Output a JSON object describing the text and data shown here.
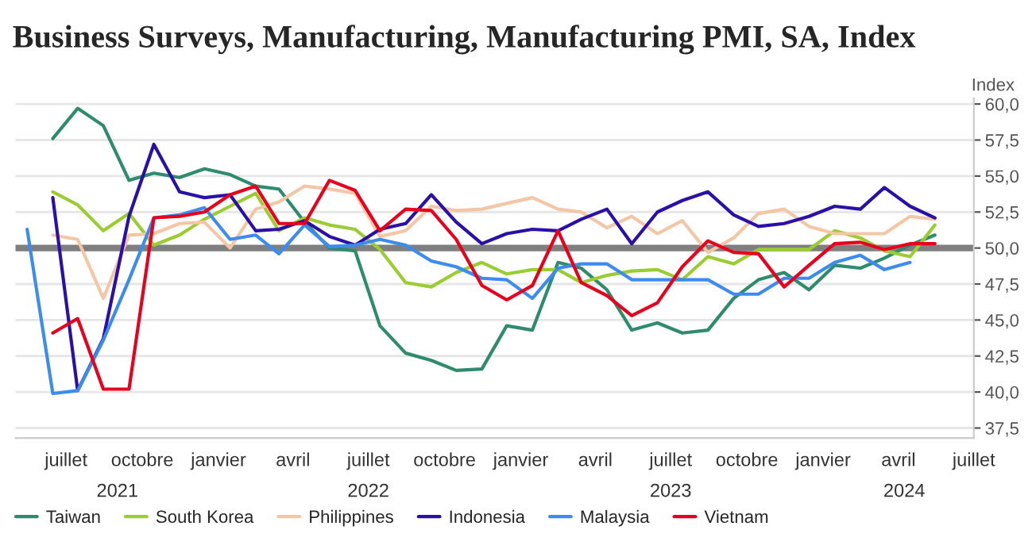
{
  "chart_data": {
    "type": "line",
    "title": "Business Surveys, Manufacturing, Manufacturing PMI, SA, Index",
    "ylabel": "Index",
    "x": [
      "2021-05-15",
      "2021-06-15",
      "2021-07-15",
      "2021-08-15",
      "2021-09-15",
      "2021-10-15",
      "2021-11-15",
      "2021-12-15",
      "2022-01-15",
      "2022-02-15",
      "2022-03-15",
      "2022-04-15",
      "2022-05-15",
      "2022-06-15",
      "2022-07-15",
      "2022-08-15",
      "2022-09-15",
      "2022-10-15",
      "2022-11-15",
      "2022-12-15",
      "2023-01-15",
      "2023-02-15",
      "2023-03-15",
      "2023-04-15",
      "2023-05-15",
      "2023-06-15",
      "2023-07-15",
      "2023-08-15",
      "2023-09-15",
      "2023-10-15",
      "2023-11-15",
      "2023-12-15",
      "2024-01-15",
      "2024-02-15",
      "2024-03-15",
      "2024-04-15",
      "2024-05-15"
    ],
    "series": [
      {
        "name": "Taiwan",
        "color": "#2e8b6e",
        "values": [
          null,
          57.6,
          59.7,
          58.5,
          54.7,
          55.2,
          54.9,
          55.5,
          55.1,
          54.3,
          54.1,
          51.8,
          50.0,
          49.8,
          44.6,
          42.7,
          42.2,
          41.5,
          41.6,
          44.6,
          44.3,
          49.0,
          48.6,
          47.1,
          44.3,
          44.8,
          44.1,
          44.3,
          46.5,
          47.8,
          48.3,
          47.1,
          48.8,
          48.6,
          49.3,
          50.2,
          50.9
        ]
      },
      {
        "name": "South Korea",
        "color": "#9acd32",
        "values": [
          null,
          53.9,
          53.0,
          51.2,
          52.4,
          50.2,
          50.9,
          52.0,
          52.9,
          53.8,
          51.2,
          52.1,
          51.6,
          51.3,
          49.9,
          47.6,
          47.3,
          48.3,
          49.0,
          48.2,
          48.5,
          48.5,
          47.6,
          48.1,
          48.4,
          48.5,
          47.8,
          49.4,
          48.9,
          49.9,
          49.9,
          49.9,
          51.2,
          50.7,
          49.8,
          49.4,
          51.6
        ]
      },
      {
        "name": "Philippines",
        "color": "#f5c6a5",
        "values": [
          null,
          50.9,
          50.6,
          46.5,
          50.9,
          51.0,
          51.7,
          51.8,
          50.0,
          52.7,
          53.2,
          54.3,
          54.1,
          53.8,
          50.8,
          51.2,
          52.9,
          52.6,
          52.7,
          53.1,
          53.5,
          52.7,
          52.5,
          51.4,
          52.2,
          51.0,
          51.9,
          49.7,
          50.7,
          52.4,
          52.7,
          51.5,
          51.0,
          51.0,
          51.0,
          52.2,
          52.0
        ]
      },
      {
        "name": "Indonesia",
        "color": "#2a0fa8",
        "values": [
          null,
          53.5,
          40.1,
          43.7,
          52.2,
          57.2,
          53.9,
          53.5,
          53.7,
          51.2,
          51.3,
          51.9,
          50.8,
          50.2,
          51.3,
          51.7,
          53.7,
          51.8,
          50.3,
          51.0,
          51.3,
          51.2,
          52.0,
          52.7,
          50.3,
          52.5,
          53.3,
          53.9,
          52.3,
          51.5,
          51.7,
          52.2,
          52.9,
          52.7,
          54.2,
          52.9,
          52.1
        ]
      },
      {
        "name": "Malaysia",
        "color": "#3c8cf0",
        "values": [
          51.3,
          39.9,
          40.1,
          43.6,
          47.8,
          52.1,
          52.3,
          52.8,
          50.6,
          50.9,
          49.6,
          51.6,
          50.1,
          50.2,
          50.6,
          50.2,
          49.1,
          48.7,
          47.9,
          47.8,
          46.5,
          48.6,
          48.9,
          48.9,
          47.8,
          47.8,
          47.8,
          47.8,
          46.8,
          46.8,
          47.9,
          47.9,
          49.0,
          49.5,
          48.5,
          49.0,
          null
        ]
      },
      {
        "name": "Vietnam",
        "color": "#e8001c",
        "values": [
          null,
          44.1,
          45.1,
          40.2,
          40.2,
          52.1,
          52.2,
          52.5,
          53.7,
          54.3,
          51.7,
          51.7,
          54.7,
          54.0,
          51.2,
          52.7,
          52.6,
          50.6,
          47.4,
          46.4,
          47.4,
          51.2,
          47.6,
          46.7,
          45.3,
          46.2,
          48.7,
          50.5,
          49.7,
          49.6,
          47.3,
          48.8,
          50.3,
          50.4,
          49.9,
          50.3,
          50.3
        ]
      }
    ],
    "xlim": [
      "2021-05-01",
      "2024-07-01"
    ],
    "xticks": [
      {
        "value": "2021-07-01",
        "label": "juillet"
      },
      {
        "value": "2021-10-01",
        "label": "octobre"
      },
      {
        "value": "2022-01-01",
        "label": "janvier"
      },
      {
        "value": "2022-04-01",
        "label": "avril"
      },
      {
        "value": "2022-07-01",
        "label": "juillet"
      },
      {
        "value": "2022-10-01",
        "label": "octobre"
      },
      {
        "value": "2023-01-01",
        "label": "janvier"
      },
      {
        "value": "2023-04-01",
        "label": "avril"
      },
      {
        "value": "2023-07-01",
        "label": "juillet"
      },
      {
        "value": "2023-10-01",
        "label": "octobre"
      },
      {
        "value": "2024-01-01",
        "label": "janvier"
      },
      {
        "value": "2024-04-01",
        "label": "avril"
      },
      {
        "value": "2024-07-01",
        "label": "juillet"
      }
    ],
    "x2lim": [
      "2021-05-01",
      "2024-07-01"
    ],
    "x2ticks": [
      {
        "value": "2021-09-01",
        "label": "2021"
      },
      {
        "value": "2022-07-01",
        "label": "2022"
      },
      {
        "value": "2023-07-01",
        "label": "2023"
      },
      {
        "value": "2024-04-08",
        "label": "2024"
      }
    ],
    "ylim": [
      36.8,
      60.4
    ],
    "yticks": [
      {
        "value": 37.5,
        "label": "37,5"
      },
      {
        "value": 40,
        "label": "40,0"
      },
      {
        "value": 42.5,
        "label": "42,5"
      },
      {
        "value": 45,
        "label": "45,0"
      },
      {
        "value": 47.5,
        "label": "47,5"
      },
      {
        "value": 50,
        "label": "50,0"
      },
      {
        "value": 52.5,
        "label": "52,5"
      },
      {
        "value": 55,
        "label": "55,0"
      },
      {
        "value": 57.5,
        "label": "57,5"
      },
      {
        "value": 60,
        "label": "60,0"
      }
    ],
    "ref_lines": [
      {
        "axis": "y",
        "value": 50,
        "color": "#7f7f7f",
        "line_style": "solid"
      }
    ],
    "grid": "y",
    "legend": "bottom",
    "marker": "none",
    "line_style": "solid"
  }
}
